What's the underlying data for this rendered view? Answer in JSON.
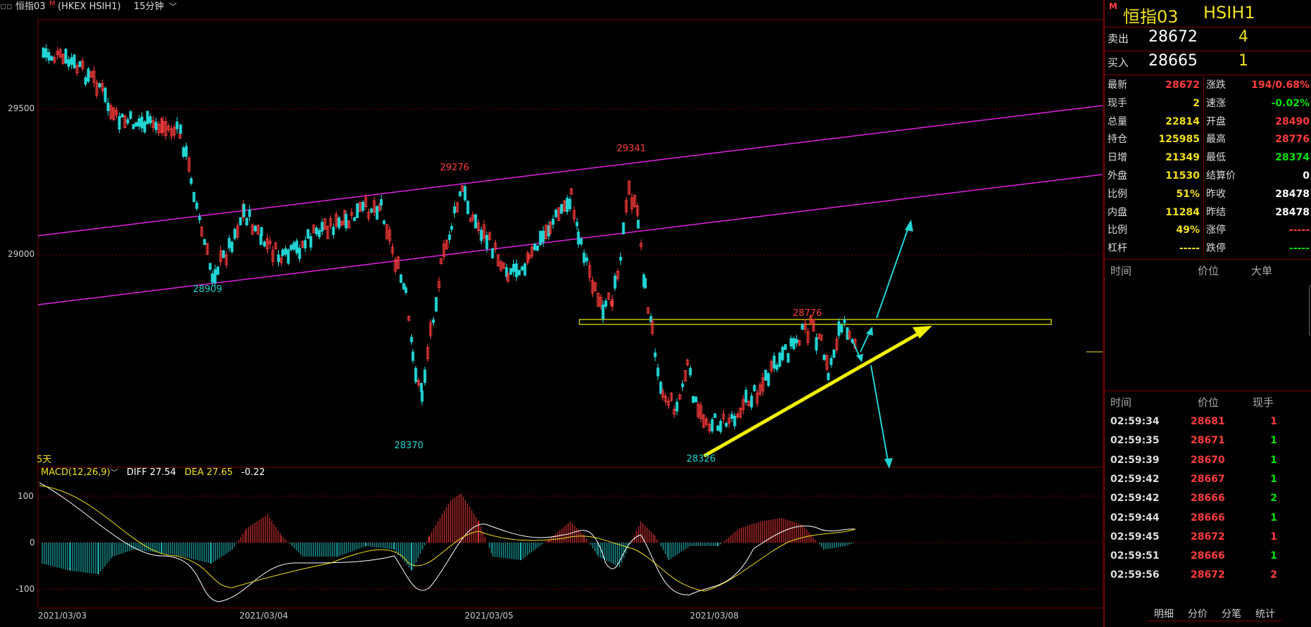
{
  "topbar": {
    "title": "恒指03",
    "title_badge": "M",
    "symbol": "(HKEX HSIH1)",
    "period": "15分钟",
    "period_icon": "chevron-down-icon"
  },
  "main_chart": {
    "y_ticks": [
      "29500",
      "29000"
    ],
    "range_label": "5天",
    "annotations": {
      "high1": "29276",
      "high2": "29341",
      "high3": "28776",
      "low1": "28909",
      "low2": "28370",
      "low3": "28326"
    }
  },
  "macd": {
    "label": "MACD(12,26,9)",
    "label_icon": "chevron-down-icon",
    "diff": "DIFF 27.54",
    "dea": "DEA 27.65",
    "macd_value": "-0.22",
    "y_ticks": [
      "100",
      "0",
      "-100"
    ]
  },
  "x_axis": [
    "2021/03/03",
    "2021/03/04",
    "2021/03/05",
    "2021/03/08"
  ],
  "colors": {
    "up": "#ff3c3c",
    "down": "#22d4d4",
    "channel": "#e020e0",
    "resistance": "#f0f000",
    "grid": "#7a0000"
  },
  "panel": {
    "badge": "M",
    "name": "恒指03",
    "code": "HSIH1",
    "sell_label": "卖出",
    "sell_price": "28672",
    "sell_qty": "4",
    "buy_label": "买入",
    "buy_price": "28665",
    "buy_qty": "1",
    "stats_left": [
      {
        "label": "最新",
        "value": "28672",
        "color": "red"
      },
      {
        "label": "现手",
        "value": "2",
        "color": "yellow"
      },
      {
        "label": "总量",
        "value": "22814",
        "color": "yellow"
      },
      {
        "label": "持仓",
        "value": "125985",
        "color": "yellow"
      },
      {
        "label": "日增",
        "value": "21349",
        "color": "yellow"
      },
      {
        "label": "外盘",
        "value": "11530",
        "color": "yellow"
      },
      {
        "label": "比例",
        "value": "51%",
        "color": "yellow"
      },
      {
        "label": "内盘",
        "value": "11284",
        "color": "yellow"
      },
      {
        "label": "比例",
        "value": "49%",
        "color": "yellow"
      },
      {
        "label": "杠杆",
        "value": "-----",
        "color": "yellow"
      }
    ],
    "stats_right": [
      {
        "label": "涨跌",
        "value": "194/0.68%",
        "color": "red"
      },
      {
        "label": "速涨",
        "value": "-0.02%",
        "color": "green"
      },
      {
        "label": "开盘",
        "value": "28490",
        "color": "red"
      },
      {
        "label": "最高",
        "value": "28776",
        "color": "red"
      },
      {
        "label": "最低",
        "value": "28374",
        "color": "green"
      },
      {
        "label": "结算价",
        "value": "0",
        "color": "white"
      },
      {
        "label": "昨收",
        "value": "28478",
        "color": "white"
      },
      {
        "label": "昨结",
        "value": "28478",
        "color": "white"
      },
      {
        "label": "涨停",
        "value": "-----",
        "color": "red"
      },
      {
        "label": "跌停",
        "value": "-----",
        "color": "green"
      }
    ],
    "big_orders_header": {
      "time": "时间",
      "price": "价位",
      "big": "大单"
    },
    "trades_header": {
      "time": "时间",
      "price": "价位",
      "qty": "现手"
    },
    "trades": [
      {
        "time": "02:59:34",
        "price": "28681",
        "qty": "1",
        "qty_color": "red"
      },
      {
        "time": "02:59:35",
        "price": "28671",
        "qty": "1",
        "qty_color": "green"
      },
      {
        "time": "02:59:39",
        "price": "28670",
        "qty": "1",
        "qty_color": "green"
      },
      {
        "time": "02:59:42",
        "price": "28667",
        "qty": "1",
        "qty_color": "green"
      },
      {
        "time": "02:59:42",
        "price": "28666",
        "qty": "2",
        "qty_color": "green"
      },
      {
        "time": "02:59:44",
        "price": "28666",
        "qty": "1",
        "qty_color": "green"
      },
      {
        "time": "02:59:45",
        "price": "28672",
        "qty": "1",
        "qty_color": "red"
      },
      {
        "time": "02:59:51",
        "price": "28666",
        "qty": "1",
        "qty_color": "green"
      },
      {
        "time": "02:59:56",
        "price": "28672",
        "qty": "2",
        "qty_color": "red"
      }
    ],
    "tabs": [
      "明细",
      "分价",
      "分笔",
      "统计"
    ]
  }
}
